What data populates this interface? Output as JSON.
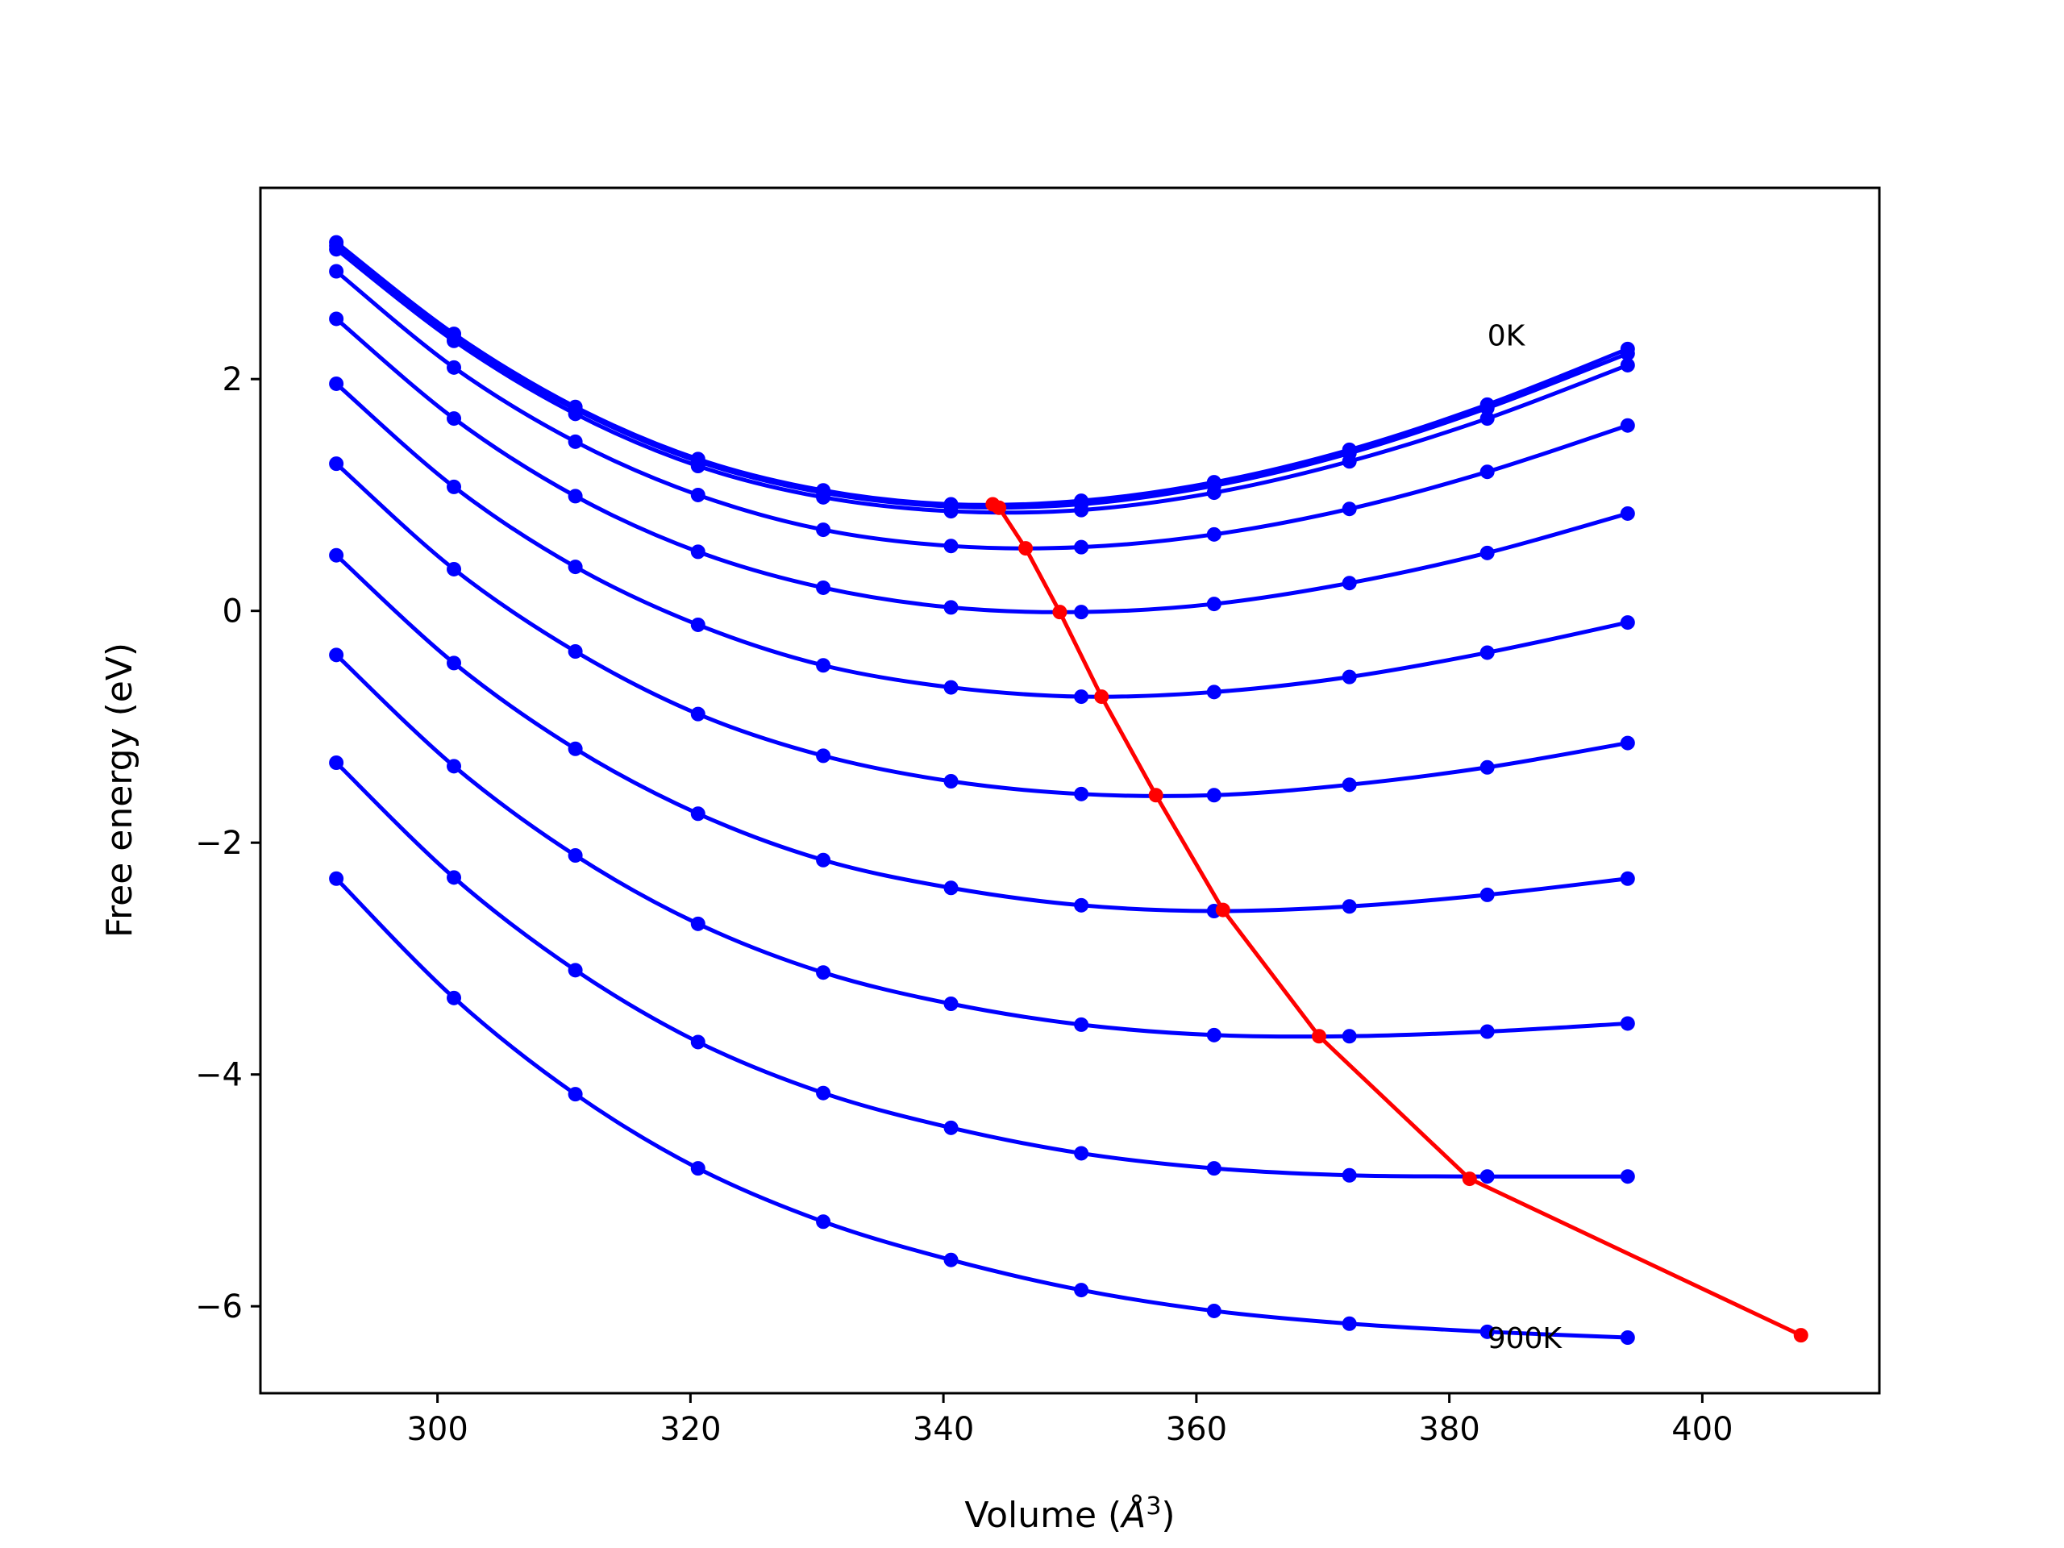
{
  "chart_data": {
    "type": "line",
    "title": "",
    "xlabel": "Volume (",
    "xlabel_unit": "Å",
    "xlabel_exp": "3",
    "xlabel_close": ")",
    "ylabel": "Free energy (eV)",
    "xlim": [
      286,
      414
    ],
    "ylim": [
      -6.75,
      3.65
    ],
    "xticks": [
      300,
      320,
      340,
      360,
      380,
      400
    ],
    "yticks": [
      -6,
      -4,
      -2,
      0,
      2
    ],
    "ytick_labels": [
      "−6",
      "−4",
      "−2",
      "0",
      "2"
    ],
    "grid": false,
    "legend": "none",
    "colors": {
      "curves": "#0000ff",
      "minima": "#ff0000"
    },
    "annotations": [
      {
        "text": "0K",
        "x": 383,
        "y": 2.38
      },
      {
        "text": "900K",
        "x": 383,
        "y": -6.27
      }
    ],
    "x": [
      292.0,
      301.3,
      310.9,
      320.6,
      330.5,
      340.6,
      350.9,
      361.4,
      372.1,
      383.0,
      394.1
    ],
    "series": [
      {
        "values": [
          3.18,
          2.39,
          1.76,
          1.31,
          1.04,
          0.92,
          0.95,
          1.11,
          1.39,
          1.78,
          2.26
        ]
      },
      {
        "values": [
          3.15,
          2.36,
          1.74,
          1.29,
          1.02,
          0.9,
          0.92,
          1.08,
          1.36,
          1.75,
          2.22
        ]
      },
      {
        "values": [
          3.12,
          2.33,
          1.7,
          1.25,
          0.98,
          0.86,
          0.87,
          1.02,
          1.29,
          1.66,
          2.12
        ]
      },
      {
        "values": [
          2.93,
          2.1,
          1.46,
          1.0,
          0.7,
          0.56,
          0.55,
          0.66,
          0.88,
          1.2,
          1.6
        ]
      },
      {
        "values": [
          2.52,
          1.66,
          0.99,
          0.51,
          0.2,
          0.03,
          -0.01,
          0.06,
          0.24,
          0.5,
          0.84
        ]
      },
      {
        "values": [
          1.96,
          1.07,
          0.38,
          -0.12,
          -0.47,
          -0.66,
          -0.74,
          -0.7,
          -0.57,
          -0.36,
          -0.1
        ]
      },
      {
        "values": [
          1.27,
          0.36,
          -0.35,
          -0.89,
          -1.25,
          -1.47,
          -1.58,
          -1.59,
          -1.5,
          -1.35,
          -1.14
        ]
      },
      {
        "values": [
          0.48,
          -0.45,
          -1.19,
          -1.75,
          -2.15,
          -2.39,
          -2.54,
          -2.59,
          -2.55,
          -2.45,
          -2.31
        ]
      },
      {
        "values": [
          -0.38,
          -1.34,
          -2.11,
          -2.7,
          -3.12,
          -3.39,
          -3.57,
          -3.66,
          -3.67,
          -3.63,
          -3.56
        ]
      },
      {
        "values": [
          -1.31,
          -2.3,
          -3.1,
          -3.72,
          -4.16,
          -4.46,
          -4.68,
          -4.81,
          -4.87,
          -4.88,
          -4.88
        ]
      },
      {
        "values": [
          -2.31,
          -3.34,
          -4.17,
          -4.81,
          -5.27,
          -5.6,
          -5.86,
          -6.04,
          -6.15,
          -6.22,
          -6.27
        ]
      }
    ],
    "minima": {
      "x": [
        343.9,
        344.4,
        346.5,
        349.2,
        352.5,
        356.8,
        362.1,
        369.7,
        381.6,
        407.8
      ],
      "y": [
        0.92,
        0.89,
        0.54,
        -0.01,
        -0.74,
        -1.59,
        -2.58,
        -3.67,
        -4.9,
        -6.25
      ]
    }
  }
}
